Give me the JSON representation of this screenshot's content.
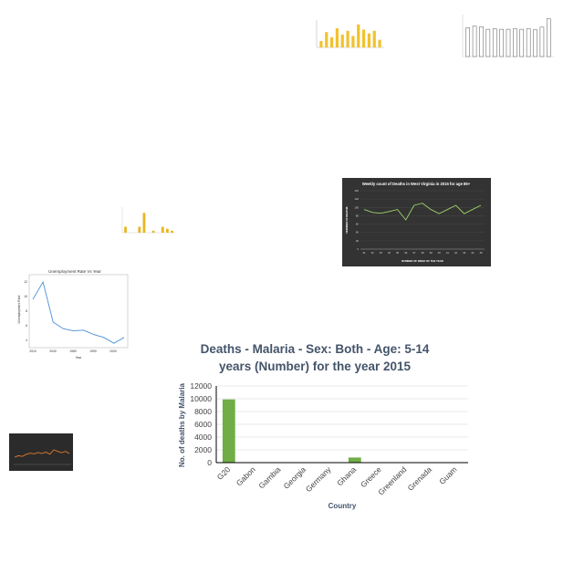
{
  "chart_data": [
    {
      "type": "bar",
      "title": "",
      "categories": [
        "",
        "",
        "",
        "",
        "",
        "",
        "",
        "",
        "",
        "",
        "",
        ""
      ],
      "values": [
        5,
        12,
        8,
        15,
        10,
        13,
        9,
        18,
        14,
        11,
        13,
        6
      ],
      "xlabel": "",
      "ylabel": "",
      "ylim": [
        0,
        20
      ],
      "color": "#f2c12e"
    },
    {
      "type": "bar",
      "title": "",
      "categories": [
        "",
        "",
        "",
        "",
        "",
        "",
        "",
        "",
        "",
        "",
        "",
        "",
        ""
      ],
      "values": [
        55,
        58,
        57,
        52,
        53,
        52,
        52,
        53,
        52,
        53,
        51,
        56,
        72
      ],
      "xlabel": "",
      "ylabel": "",
      "ylim": [
        0,
        80
      ],
      "color": "#ffffff"
    },
    {
      "type": "bar",
      "title": "",
      "categories": [
        "",
        "",
        "",
        "",
        "",
        "",
        "",
        "",
        "",
        "",
        ""
      ],
      "values": [
        3,
        0,
        0,
        3,
        10,
        0,
        1,
        0,
        3,
        2,
        1
      ],
      "xlabel": "",
      "ylabel": "",
      "ylim": [
        0,
        12
      ],
      "color": "#e8b622"
    },
    {
      "type": "line",
      "title": "Weekly count of Deaths in West Virginia in 2015 for age 85+",
      "x": [
        31,
        32,
        33,
        34,
        35,
        36,
        37,
        38,
        39,
        40,
        41,
        42,
        43,
        44,
        45
      ],
      "series": [
        {
          "values": [
            95,
            88,
            86,
            90,
            95,
            70,
            105,
            110,
            95,
            85,
            95,
            105,
            85,
            95,
            105
          ]
        }
      ],
      "xlabel": "NUMBER OF WEEK OF THE YEAR",
      "ylabel": "NUMBER OF DEATHS",
      "ylim": [
        0,
        140
      ],
      "yticks": [
        0,
        20,
        40,
        60,
        80,
        100,
        120,
        140
      ],
      "background": "#333333",
      "line_color": "#9ed36a"
    },
    {
      "type": "line",
      "title": "Unemployment Rate Vs Year",
      "x": [
        2010,
        2011,
        2012,
        2013,
        2014,
        2015,
        2016,
        2017,
        2018,
        2019
      ],
      "series": [
        {
          "values": [
            9.6,
            12.0,
            6.5,
            5.6,
            5.3,
            5.4,
            4.8,
            4.4,
            3.6,
            4.4
          ]
        }
      ],
      "xlabel": "Year",
      "ylabel": "Unemployment Rate",
      "xticks": [
        2010,
        2040,
        1980,
        1990,
        2000
      ],
      "ylim": [
        3,
        13
      ],
      "yticks": [
        4,
        6,
        8,
        10,
        12
      ],
      "line_color": "#4a8fd6"
    },
    {
      "type": "line",
      "title": "",
      "x": [
        1,
        2,
        3,
        4,
        5,
        6,
        7,
        8,
        9,
        10,
        11,
        12,
        13,
        14,
        15
      ],
      "series": [
        {
          "values": [
            2,
            2.4,
            2.2,
            2.8,
            3.1,
            2.9,
            3.3,
            3.0,
            3.4,
            2.8,
            4.0,
            3.6,
            3.2,
            3.6,
            3.0
          ]
        }
      ],
      "xlabel": "",
      "ylabel": "",
      "background": "#2b2b2b",
      "line_color": "#e07a2e"
    },
    {
      "type": "bar",
      "title": "Deaths - Malaria - Sex: Both - Age: 5-14 years (Number) for the year 2015",
      "categories": [
        "G20",
        "Gabon",
        "Gambia",
        "Georgia",
        "Germany",
        "Ghana",
        "Greece",
        "Greenland",
        "Grenada",
        "Guam"
      ],
      "values": [
        9900,
        10,
        10,
        0,
        0,
        800,
        0,
        0,
        0,
        0
      ],
      "xlabel": "Country",
      "ylabel": "No. of deaths by Malaria",
      "ylim": [
        0,
        12000
      ],
      "yticks": [
        0,
        2000,
        4000,
        6000,
        8000,
        10000,
        12000
      ],
      "color": "#70ad47"
    }
  ]
}
